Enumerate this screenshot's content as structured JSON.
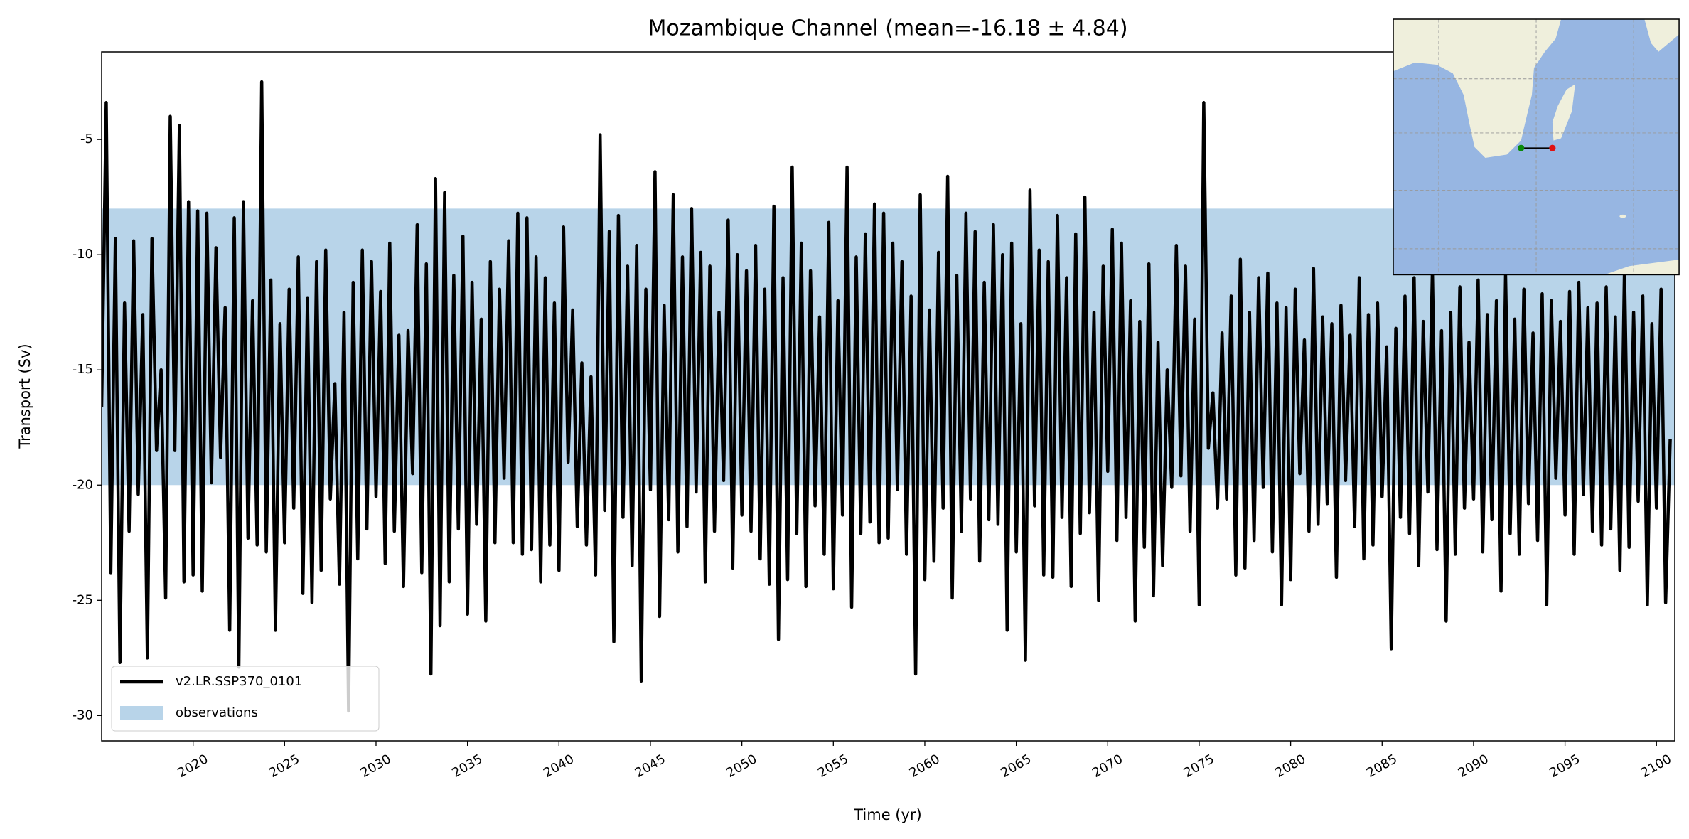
{
  "chart_data": {
    "type": "line",
    "title": "Mozambique Channel (mean=-16.18 ± 4.84)",
    "xlabel": "Time (yr)",
    "ylabel": "Transport (Sv)",
    "xlim": [
      2015,
      2101
    ],
    "ylim": [
      -31.1,
      -1.2
    ],
    "xticks": [
      2020,
      2025,
      2030,
      2035,
      2040,
      2045,
      2050,
      2055,
      2060,
      2065,
      2070,
      2075,
      2080,
      2085,
      2090,
      2095,
      2100
    ],
    "yticks": [
      -30,
      -25,
      -20,
      -15,
      -10,
      -5
    ],
    "legend": "lower left",
    "observations": {
      "name": "observations",
      "range": [
        -20,
        -8
      ],
      "color": "#b8d4e9"
    },
    "x": [
      2015,
      2015.25,
      2015.5,
      2015.75,
      2016,
      2016.25,
      2016.5,
      2016.75,
      2017,
      2017.25,
      2017.5,
      2017.75,
      2018,
      2018.25,
      2018.5,
      2018.75,
      2019,
      2019.25,
      2019.5,
      2019.75,
      2020,
      2020.25,
      2020.5,
      2020.75,
      2021,
      2021.25,
      2021.5,
      2021.75,
      2022,
      2022.25,
      2022.5,
      2022.75,
      2023,
      2023.25,
      2023.5,
      2023.75,
      2024,
      2024.25,
      2024.5,
      2024.75,
      2025,
      2025.25,
      2025.5,
      2025.75,
      2026,
      2026.25,
      2026.5,
      2026.75,
      2027,
      2027.25,
      2027.5,
      2027.75,
      2028,
      2028.25,
      2028.5,
      2028.75,
      2029,
      2029.25,
      2029.5,
      2029.75,
      2030,
      2030.25,
      2030.5,
      2030.75,
      2031,
      2031.25,
      2031.5,
      2031.75,
      2032,
      2032.25,
      2032.5,
      2032.75,
      2033,
      2033.25,
      2033.5,
      2033.75,
      2034,
      2034.25,
      2034.5,
      2034.75,
      2035,
      2035.25,
      2035.5,
      2035.75,
      2036,
      2036.25,
      2036.5,
      2036.75,
      2037,
      2037.25,
      2037.5,
      2037.75,
      2038,
      2038.25,
      2038.5,
      2038.75,
      2039,
      2039.25,
      2039.5,
      2039.75,
      2040,
      2040.25,
      2040.5,
      2040.75,
      2041,
      2041.25,
      2041.5,
      2041.75,
      2042,
      2042.25,
      2042.5,
      2042.75,
      2043,
      2043.25,
      2043.5,
      2043.75,
      2044,
      2044.25,
      2044.5,
      2044.75,
      2045,
      2045.25,
      2045.5,
      2045.75,
      2046,
      2046.25,
      2046.5,
      2046.75,
      2047,
      2047.25,
      2047.5,
      2047.75,
      2048,
      2048.25,
      2048.5,
      2048.75,
      2049,
      2049.25,
      2049.5,
      2049.75,
      2050,
      2050.25,
      2050.5,
      2050.75,
      2051,
      2051.25,
      2051.5,
      2051.75,
      2052,
      2052.25,
      2052.5,
      2052.75,
      2053,
      2053.25,
      2053.5,
      2053.75,
      2054,
      2054.25,
      2054.5,
      2054.75,
      2055,
      2055.25,
      2055.5,
      2055.75,
      2056,
      2056.25,
      2056.5,
      2056.75,
      2057,
      2057.25,
      2057.5,
      2057.75,
      2058,
      2058.25,
      2058.5,
      2058.75,
      2059,
      2059.25,
      2059.5,
      2059.75,
      2060,
      2060.25,
      2060.5,
      2060.75,
      2061,
      2061.25,
      2061.5,
      2061.75,
      2062,
      2062.25,
      2062.5,
      2062.75,
      2063,
      2063.25,
      2063.5,
      2063.75,
      2064,
      2064.25,
      2064.5,
      2064.75,
      2065,
      2065.25,
      2065.5,
      2065.75,
      2066,
      2066.25,
      2066.5,
      2066.75,
      2067,
      2067.25,
      2067.5,
      2067.75,
      2068,
      2068.25,
      2068.5,
      2068.75,
      2069,
      2069.25,
      2069.5,
      2069.75,
      2070,
      2070.25,
      2070.5,
      2070.75,
      2071,
      2071.25,
      2071.5,
      2071.75,
      2072,
      2072.25,
      2072.5,
      2072.75,
      2073,
      2073.25,
      2073.5,
      2073.75,
      2074,
      2074.25,
      2074.5,
      2074.75,
      2075,
      2075.25,
      2075.5,
      2075.75,
      2076,
      2076.25,
      2076.5,
      2076.75,
      2077,
      2077.25,
      2077.5,
      2077.75,
      2078,
      2078.25,
      2078.5,
      2078.75,
      2079,
      2079.25,
      2079.5,
      2079.75,
      2080,
      2080.25,
      2080.5,
      2080.75,
      2081,
      2081.25,
      2081.5,
      2081.75,
      2082,
      2082.25,
      2082.5,
      2082.75,
      2083,
      2083.25,
      2083.5,
      2083.75,
      2084,
      2084.25,
      2084.5,
      2084.75,
      2085,
      2085.25,
      2085.5,
      2085.75,
      2086,
      2086.25,
      2086.5,
      2086.75,
      2087,
      2087.25,
      2087.5,
      2087.75,
      2088,
      2088.25,
      2088.5,
      2088.75,
      2089,
      2089.25,
      2089.5,
      2089.75,
      2090,
      2090.25,
      2090.5,
      2090.75,
      2091,
      2091.25,
      2091.5,
      2091.75,
      2092,
      2092.25,
      2092.5,
      2092.75,
      2093,
      2093.25,
      2093.5,
      2093.75,
      2094,
      2094.25,
      2094.5,
      2094.75,
      2095,
      2095.25,
      2095.5,
      2095.75,
      2096,
      2096.25,
      2096.5,
      2096.75,
      2097,
      2097.25,
      2097.5,
      2097.75,
      2098,
      2098.25,
      2098.5,
      2098.75,
      2099,
      2099.25,
      2099.5,
      2099.75,
      2100,
      2100.25,
      2100.5,
      2100.75
    ],
    "series": [
      {
        "name": "v2.LR.SSP370_0101",
        "color": "#000000",
        "values": [
          -16.6,
          -3.4,
          -23.8,
          -9.3,
          -27.7,
          -12.1,
          -22.0,
          -9.4,
          -20.4,
          -12.6,
          -27.5,
          -9.3,
          -18.5,
          -15.0,
          -24.9,
          -4.0,
          -18.5,
          -4.4,
          -24.2,
          -7.7,
          -23.9,
          -8.1,
          -24.6,
          -8.2,
          -19.9,
          -9.7,
          -18.8,
          -12.3,
          -26.3,
          -8.4,
          -27.9,
          -7.7,
          -22.3,
          -12.0,
          -22.6,
          -2.5,
          -22.9,
          -11.1,
          -26.3,
          -13.0,
          -22.5,
          -11.5,
          -21.0,
          -10.1,
          -24.7,
          -11.9,
          -25.1,
          -10.3,
          -23.7,
          -9.8,
          -20.6,
          -15.6,
          -24.3,
          -12.5,
          -29.8,
          -11.2,
          -23.2,
          -9.8,
          -21.9,
          -10.3,
          -20.5,
          -11.6,
          -23.4,
          -9.5,
          -22.0,
          -13.5,
          -24.4,
          -13.3,
          -19.5,
          -8.7,
          -23.8,
          -10.4,
          -28.2,
          -6.7,
          -26.1,
          -7.3,
          -24.2,
          -10.9,
          -21.9,
          -9.2,
          -25.6,
          -11.2,
          -21.7,
          -12.8,
          -25.9,
          -10.3,
          -22.5,
          -11.5,
          -19.7,
          -9.4,
          -22.5,
          -8.2,
          -23.0,
          -8.4,
          -22.8,
          -10.1,
          -24.2,
          -11.0,
          -22.6,
          -12.1,
          -23.7,
          -8.8,
          -19.0,
          -12.4,
          -21.8,
          -14.7,
          -22.6,
          -15.3,
          -23.9,
          -4.8,
          -21.1,
          -9.0,
          -26.8,
          -8.3,
          -21.4,
          -10.5,
          -23.5,
          -9.6,
          -28.5,
          -11.5,
          -20.2,
          -6.4,
          -25.7,
          -12.2,
          -21.5,
          -7.4,
          -22.9,
          -10.1,
          -21.8,
          -8.0,
          -20.3,
          -9.9,
          -24.2,
          -10.5,
          -22.0,
          -12.5,
          -19.8,
          -8.5,
          -23.6,
          -10.0,
          -21.3,
          -10.7,
          -22.0,
          -9.6,
          -23.2,
          -11.5,
          -24.3,
          -7.9,
          -26.7,
          -11.0,
          -24.1,
          -6.2,
          -22.1,
          -9.5,
          -24.4,
          -10.7,
          -20.9,
          -12.7,
          -23.0,
          -8.6,
          -24.5,
          -12.0,
          -21.3,
          -6.2,
          -25.3,
          -10.1,
          -22.1,
          -9.1,
          -21.6,
          -7.8,
          -22.5,
          -8.2,
          -22.3,
          -9.5,
          -20.2,
          -10.3,
          -23.0,
          -11.8,
          -28.2,
          -7.4,
          -24.1,
          -12.4,
          -23.3,
          -9.9,
          -21.0,
          -6.6,
          -24.9,
          -10.9,
          -22.0,
          -8.2,
          -20.6,
          -9.0,
          -23.3,
          -11.2,
          -21.5,
          -8.7,
          -21.7,
          -10.0,
          -26.3,
          -9.5,
          -22.9,
          -13.0,
          -27.6,
          -7.2,
          -20.9,
          -9.8,
          -23.9,
          -10.3,
          -24.0,
          -8.3,
          -21.4,
          -11.0,
          -24.4,
          -9.1,
          -22.1,
          -7.5,
          -21.2,
          -12.5,
          -25.0,
          -10.5,
          -19.4,
          -8.9,
          -22.4,
          -9.5,
          -21.4,
          -12.0,
          -25.9,
          -12.9,
          -22.7,
          -10.4,
          -24.8,
          -13.8,
          -23.5,
          -15.0,
          -20.1,
          -9.6,
          -19.6,
          -10.5,
          -22.0,
          -12.8,
          -25.2,
          -3.4,
          -18.4,
          -16.0,
          -21.0,
          -13.4,
          -20.6,
          -11.8,
          -23.9,
          -10.2,
          -23.6,
          -12.5,
          -22.4,
          -11.0,
          -20.1,
          -10.8,
          -22.9,
          -12.1,
          -25.2,
          -12.3,
          -24.1,
          -11.5,
          -19.5,
          -13.7,
          -22.0,
          -10.6,
          -21.7,
          -12.7,
          -20.8,
          -13.0,
          -24.0,
          -12.2,
          -19.8,
          -13.5,
          -21.8,
          -11.0,
          -23.2,
          -12.6,
          -22.6,
          -12.1,
          -20.5,
          -14.0,
          -27.1,
          -13.2,
          -21.4,
          -11.8,
          -22.1,
          -11.0,
          -23.5,
          -12.9,
          -20.3,
          -10.7,
          -22.8,
          -13.3,
          -25.9,
          -12.5,
          -23.0,
          -11.4,
          -21.0,
          -13.8,
          -20.6,
          -11.1,
          -22.9,
          -12.6,
          -21.5,
          -12.0,
          -24.6,
          -10.9,
          -22.1,
          -12.8,
          -23.0,
          -11.5,
          -20.8,
          -13.4,
          -22.4,
          -11.7,
          -25.2,
          -12.0,
          -19.7,
          -12.9,
          -21.3,
          -11.6,
          -23.0,
          -11.2,
          -20.4,
          -12.3,
          -22.0,
          -12.1,
          -22.6,
          -11.4,
          -21.9,
          -12.7,
          -23.7,
          -10.6,
          -22.7,
          -12.5,
          -20.7,
          -11.8,
          -25.2,
          -13.0,
          -21.0,
          -11.5,
          -25.1,
          -18.0
        ]
      }
    ]
  }
}
